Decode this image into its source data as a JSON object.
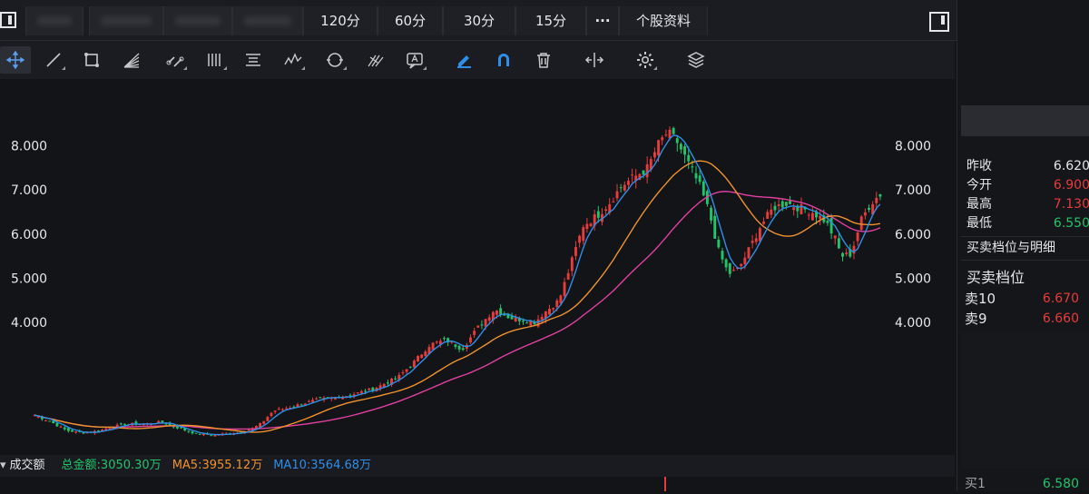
{
  "tabs": [
    "120分",
    "60分",
    "30分",
    "15分",
    "···",
    "个股资料"
  ],
  "toolbar": {
    "icons": [
      "crosshair-icon",
      "line-icon",
      "rect-icon",
      "fan-icon",
      "channel-icon",
      "vertical-lines-icon",
      "text-block-icon",
      "wave-icon",
      "cycle-icon",
      "fork-icon",
      "annotation-icon",
      "pen-icon",
      "magnet-icon",
      "trash-icon",
      "expand-icon",
      "gear-icon",
      "layers-icon"
    ]
  },
  "chart_data": {
    "type": "candlestick",
    "y_ticks": [
      "8.000",
      "7.000",
      "6.000",
      "5.000",
      "4.000"
    ],
    "y_tick_values": [
      8,
      7,
      6,
      5,
      4
    ],
    "ylim": [
      1.0,
      9.1
    ],
    "n_bars": 226,
    "close_path": [
      [
        0,
        1.9
      ],
      [
        10,
        1.75
      ],
      [
        20,
        1.55
      ],
      [
        30,
        1.5
      ],
      [
        40,
        1.55
      ],
      [
        55,
        1.7
      ],
      [
        70,
        1.7
      ],
      [
        78,
        1.75
      ],
      [
        90,
        1.6
      ],
      [
        100,
        1.48
      ],
      [
        110,
        1.45
      ],
      [
        125,
        1.5
      ],
      [
        135,
        1.6
      ],
      [
        140,
        1.7
      ],
      [
        148,
        2.0
      ],
      [
        155,
        2.05
      ],
      [
        165,
        2.15
      ],
      [
        175,
        2.25
      ],
      [
        185,
        2.3
      ],
      [
        195,
        2.35
      ],
      [
        210,
        2.5
      ],
      [
        225,
        2.75
      ],
      [
        235,
        3.1
      ],
      [
        245,
        3.5
      ],
      [
        255,
        3.6
      ],
      [
        265,
        3.4
      ],
      [
        275,
        3.9
      ],
      [
        285,
        4.3
      ],
      [
        295,
        4.1
      ],
      [
        305,
        4.05
      ],
      [
        310,
        4.0
      ],
      [
        315,
        4.2
      ],
      [
        325,
        4.5
      ],
      [
        333,
        5.4
      ],
      [
        340,
        6.2
      ],
      [
        348,
        6.4
      ],
      [
        356,
        6.7
      ],
      [
        364,
        7.1
      ],
      [
        372,
        7.3
      ],
      [
        380,
        7.5
      ],
      [
        386,
        8.0
      ],
      [
        392,
        8.3
      ],
      [
        398,
        8.1
      ],
      [
        405,
        7.6
      ],
      [
        412,
        7.1
      ],
      [
        418,
        6.5
      ],
      [
        424,
        5.6
      ],
      [
        430,
        5.1
      ],
      [
        436,
        5.2
      ],
      [
        442,
        5.6
      ],
      [
        450,
        6.2
      ],
      [
        458,
        6.6
      ],
      [
        466,
        6.7
      ],
      [
        474,
        6.6
      ],
      [
        482,
        6.5
      ],
      [
        490,
        6.3
      ],
      [
        496,
        5.9
      ],
      [
        500,
        5.5
      ],
      [
        506,
        5.55
      ],
      [
        512,
        6.3
      ],
      [
        518,
        6.7
      ],
      [
        524,
        6.9
      ]
    ],
    "ma5_color": "#f0922e",
    "ma10_color": "#e040a0",
    "ma_short_color": "#2f8fe8",
    "up_color": "#e83b3b",
    "down_color": "#22c46b"
  },
  "volume": {
    "label": "成交额",
    "total": "总金额:3050.30万",
    "ma5": "MA5:3955.12万",
    "ma10": "MA10:3564.68万",
    "total_color": "#22c46b",
    "ma5_color": "#f0922e",
    "ma10_color": "#2f8fe8"
  },
  "quote": {
    "rows": [
      {
        "label": "昨收",
        "value": "6.620",
        "color": "#e6e6ea"
      },
      {
        "label": "今开",
        "value": "6.900",
        "color": "#e83b3b"
      },
      {
        "label": "最高",
        "value": "7.130",
        "color": "#e83b3b"
      },
      {
        "label": "最低",
        "value": "6.550",
        "color": "#22c46b"
      }
    ],
    "depth_link": "买卖档位与明细",
    "depth_title": "买卖档位",
    "asks": [
      {
        "label": "卖10",
        "value": "6.670",
        "color": "#e83b3b"
      },
      {
        "label": "卖9",
        "value": "6.660",
        "color": "#e83b3b"
      }
    ],
    "bid_row": {
      "label": "买1",
      "value": "6.580"
    }
  }
}
